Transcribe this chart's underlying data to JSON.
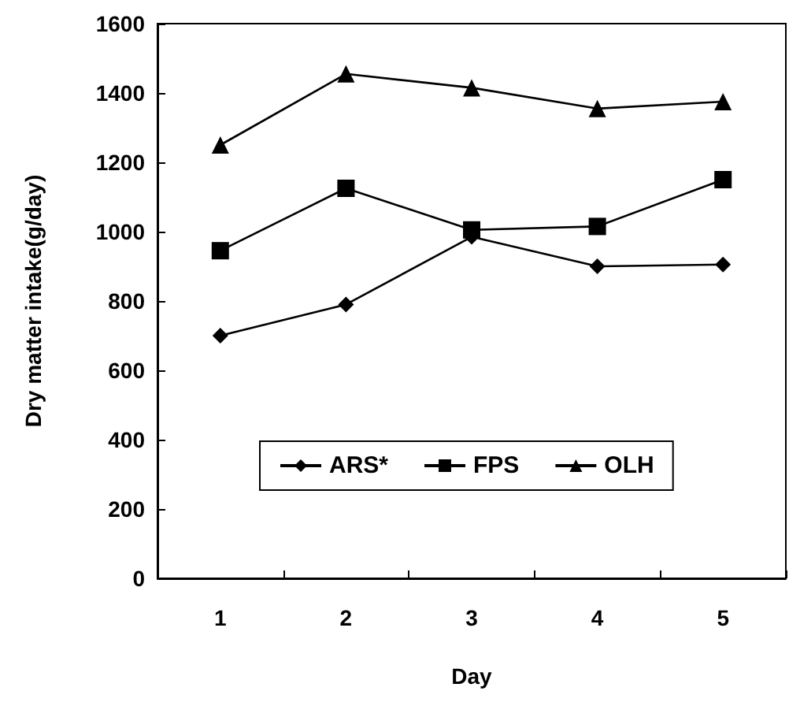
{
  "chart_data": {
    "type": "line",
    "xlabel": "Day",
    "ylabel": "Dry matter intake(g/day)",
    "categories": [
      "1",
      "2",
      "3",
      "4",
      "5"
    ],
    "series": [
      {
        "name": "ARS*",
        "color": "#000000",
        "marker": "diamond",
        "values": [
          700,
          790,
          985,
          900,
          905
        ]
      },
      {
        "name": "FPS",
        "color": "#000000",
        "marker": "square",
        "values": [
          945,
          1125,
          1005,
          1015,
          1150
        ]
      },
      {
        "name": "OLH",
        "color": "#000000",
        "marker": "triangle",
        "values": [
          1250,
          1455,
          1415,
          1355,
          1375
        ]
      }
    ],
    "ylim": [
      0,
      1600
    ],
    "yticks": [
      0,
      200,
      400,
      600,
      800,
      1000,
      1200,
      1400,
      1600
    ],
    "grid": false,
    "legend": "bottom",
    "line_style": "solid"
  }
}
